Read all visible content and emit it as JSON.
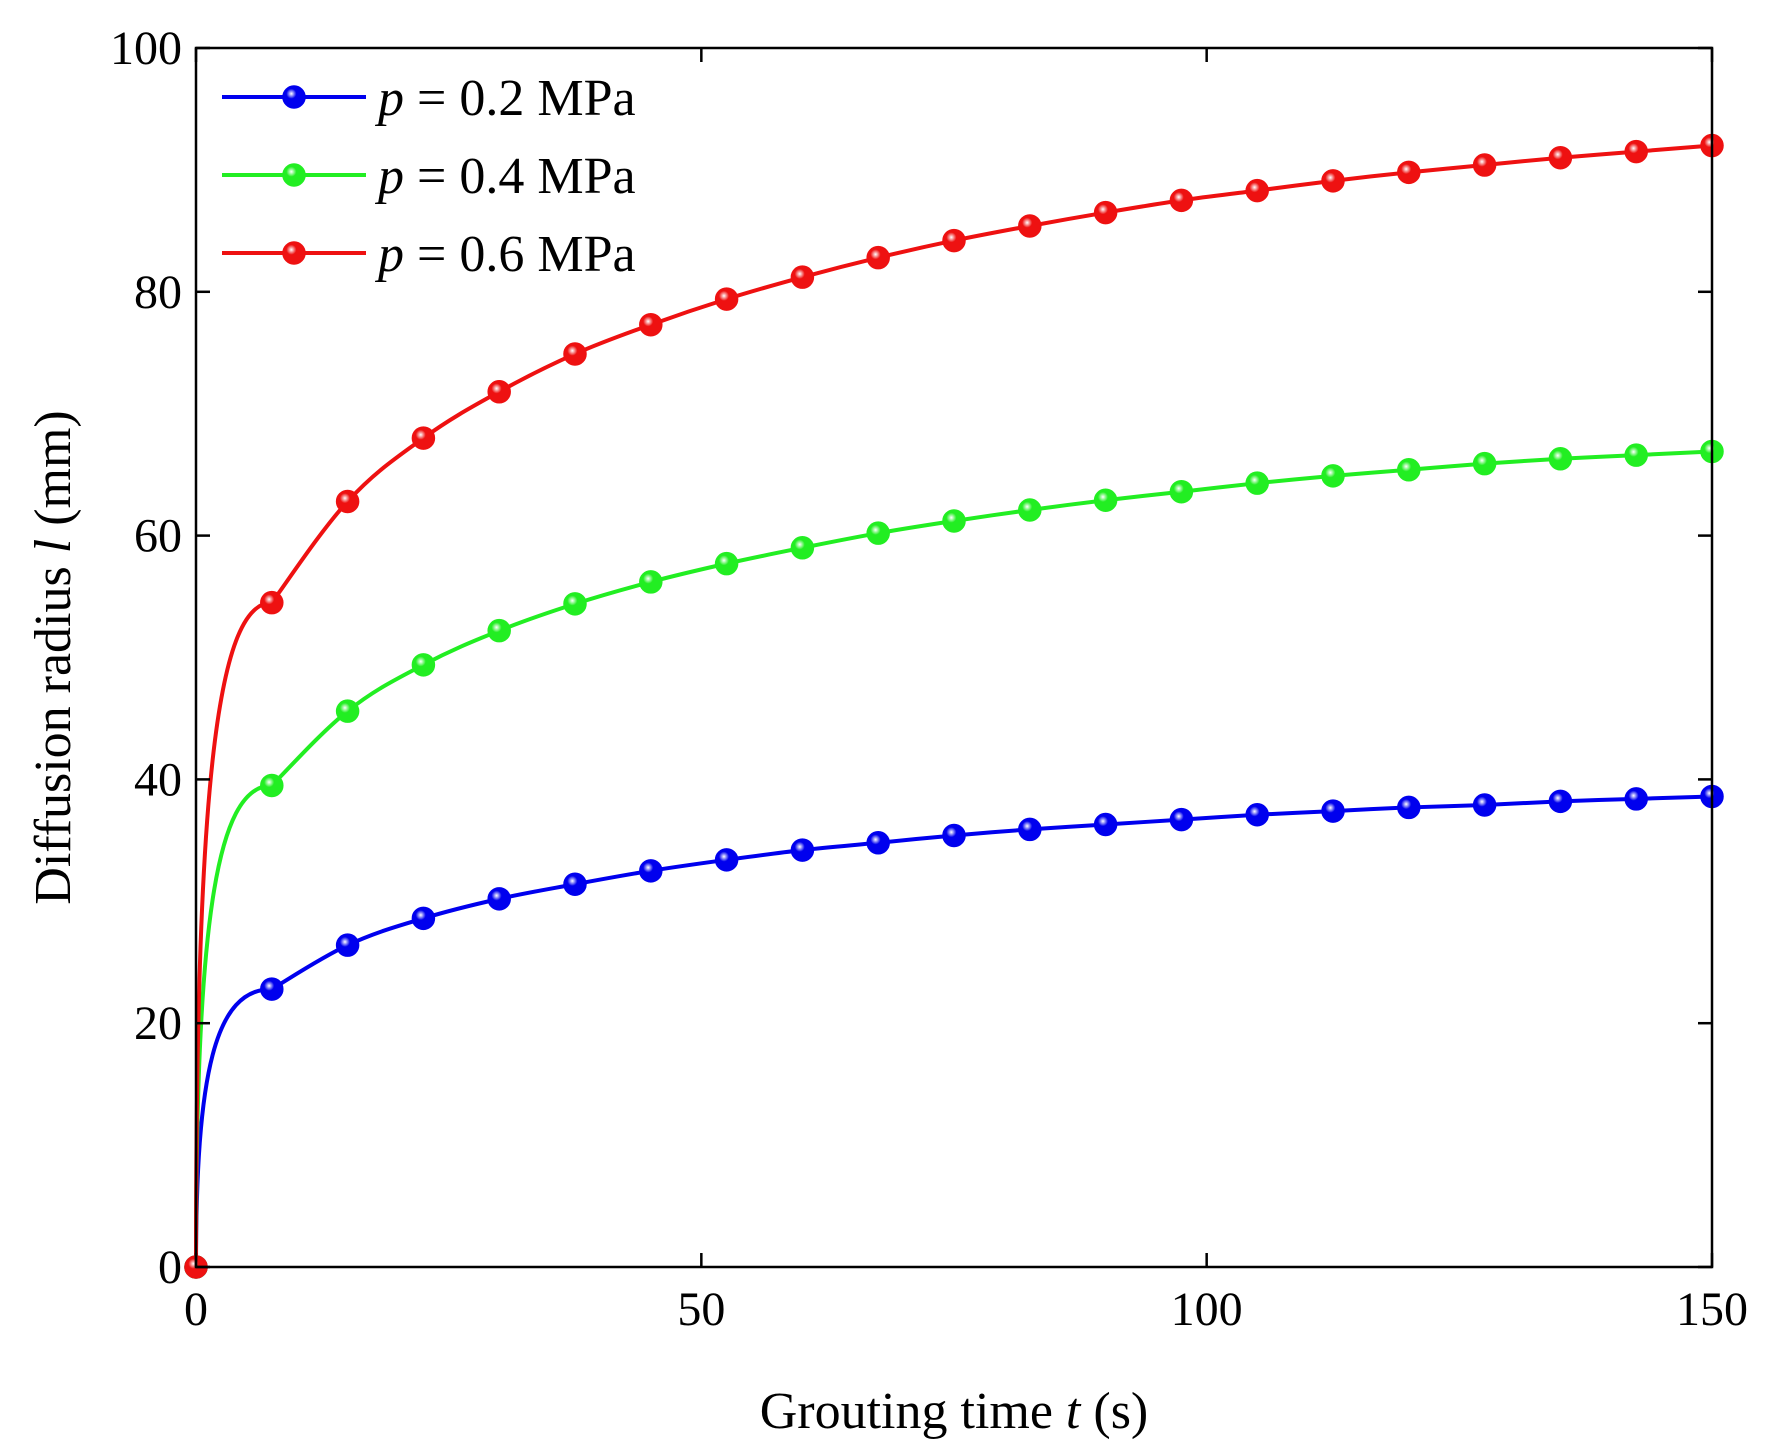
{
  "chart_data": {
    "type": "line",
    "xlabel": {
      "prefix": "Grouting time ",
      "var": "t",
      "suffix": " (s)"
    },
    "ylabel": {
      "prefix": "Diffusion radius ",
      "var": "l",
      "suffix": " (mm)"
    },
    "xlim": [
      0,
      150
    ],
    "ylim": [
      0,
      100
    ],
    "xticks": [
      0,
      50,
      100,
      150
    ],
    "yticks": [
      0,
      20,
      40,
      60,
      80,
      100
    ],
    "xtick_labels": [
      "0",
      "50",
      "100",
      "150"
    ],
    "ytick_labels": [
      "0",
      "20",
      "40",
      "60",
      "80",
      "100"
    ],
    "grid": false,
    "legend_position": "top-left",
    "marker_x": [
      0,
      7.5,
      15,
      22.5,
      30,
      37.5,
      45,
      52.5,
      60,
      67.5,
      75,
      82.5,
      90,
      97.5,
      105,
      112.5,
      120,
      127.5,
      135,
      142.5,
      150
    ],
    "series": [
      {
        "name": "p = 0.2 MPa",
        "legend_var": "p",
        "legend_rest": " = 0.2 MPa",
        "color": "#0000ee",
        "values": [
          0,
          22.8,
          26.4,
          28.6,
          30.2,
          31.4,
          32.5,
          33.4,
          34.2,
          34.8,
          35.4,
          35.9,
          36.3,
          36.7,
          37.1,
          37.4,
          37.7,
          37.9,
          38.2,
          38.4,
          38.6
        ]
      },
      {
        "name": "p = 0.4 MPa",
        "legend_var": "p",
        "legend_rest": " = 0.4 MPa",
        "color": "#22ee22",
        "values": [
          0,
          39.5,
          45.6,
          49.4,
          52.2,
          54.4,
          56.2,
          57.7,
          59.0,
          60.2,
          61.2,
          62.1,
          62.9,
          63.6,
          64.3,
          64.9,
          65.4,
          65.9,
          66.3,
          66.6,
          66.9
        ]
      },
      {
        "name": "p = 0.6 MPa",
        "legend_var": "p",
        "legend_rest": " = 0.6 MPa",
        "color": "#ee1111",
        "values": [
          0,
          54.5,
          62.8,
          68.0,
          71.8,
          74.9,
          77.3,
          79.4,
          81.2,
          82.8,
          84.2,
          85.4,
          86.5,
          87.5,
          88.3,
          89.1,
          89.8,
          90.4,
          91.0,
          91.5,
          92.0
        ]
      }
    ]
  }
}
